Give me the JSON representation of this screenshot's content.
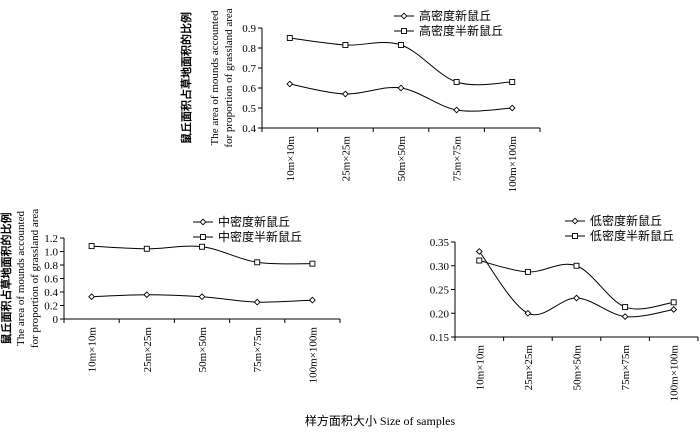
{
  "chart_data": [
    {
      "type": "line",
      "categories": [
        "10m×10m",
        "25m×25m",
        "50m×50m",
        "75m×75m",
        "100m×100m"
      ],
      "ylim": [
        0.4,
        0.9
      ],
      "yticks": [
        "0.4",
        "0.5",
        "0.6",
        "0.7",
        "0.8",
        "0.9"
      ],
      "ylabel_cn": "鼠丘面积占草地面积的比例",
      "ylabel_en_1": "The area of mounds accounted",
      "ylabel_en_2": "for proportion of grassland area",
      "legend_position": "top-right",
      "series": [
        {
          "name": "高密度新鼠丘",
          "marker": "diamond",
          "values": [
            0.62,
            0.57,
            0.6,
            0.49,
            0.5
          ]
        },
        {
          "name": "高密度半新鼠丘",
          "marker": "square",
          "values": [
            0.85,
            0.815,
            0.815,
            0.63,
            0.63
          ]
        }
      ]
    },
    {
      "type": "line",
      "categories": [
        "10m×10m",
        "25m×25m",
        "50m×50m",
        "75m×75m",
        "100m×100m"
      ],
      "ylim": [
        0,
        1.2
      ],
      "yticks": [
        "0",
        "0.2",
        "0.4",
        "0.6",
        "0.8",
        "1.0",
        "1.2"
      ],
      "ylabel_cn": "鼠丘面积占草地面积的比例",
      "ylabel_en_1": "The area of mounds accounted",
      "ylabel_en_2": "for proportion of grassland area",
      "legend_position": "top-right",
      "series": [
        {
          "name": "中密度新鼠丘",
          "marker": "diamond",
          "values": [
            0.33,
            0.36,
            0.33,
            0.25,
            0.28
          ]
        },
        {
          "name": "中密度半新鼠丘",
          "marker": "square",
          "values": [
            1.08,
            1.04,
            1.07,
            0.84,
            0.82
          ]
        }
      ]
    },
    {
      "type": "line",
      "categories": [
        "10m×10m",
        "25m×25m",
        "50m×50m",
        "75m×75m",
        "100m×100m"
      ],
      "ylim": [
        0.15,
        0.35
      ],
      "yticks": [
        "0.15",
        "0.20",
        "0.25",
        "0.30",
        "0.35"
      ],
      "legend_position": "top-right",
      "series": [
        {
          "name": "低密度新鼠丘",
          "marker": "diamond",
          "values": [
            0.33,
            0.2,
            0.232,
            0.193,
            0.208
          ]
        },
        {
          "name": "低密度半新鼠丘",
          "marker": "square",
          "values": [
            0.311,
            0.287,
            0.3,
            0.213,
            0.223
          ]
        }
      ]
    }
  ],
  "xaxis_title": "样方面积大小  Size of samples"
}
